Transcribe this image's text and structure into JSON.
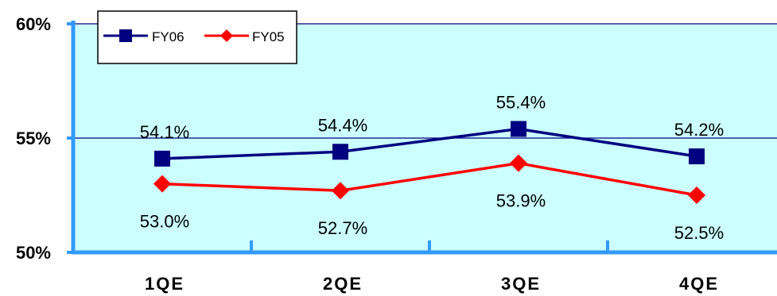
{
  "chart_data": {
    "type": "line",
    "categories": [
      "1QE",
      "2QE",
      "3QE",
      "4QE"
    ],
    "series": [
      {
        "name": "FY06",
        "values": [
          54.1,
          54.4,
          55.4,
          54.2
        ],
        "labels": [
          "54.1%",
          "54.4%",
          "55.4%",
          "54.2%"
        ],
        "color": "#000080",
        "marker": "square",
        "label_position": "above"
      },
      {
        "name": "FY05",
        "values": [
          53.0,
          52.7,
          53.9,
          52.5
        ],
        "labels": [
          "53.0%",
          "52.7%",
          "53.9%",
          "52.5%"
        ],
        "color": "#ff0000",
        "marker": "diamond",
        "label_position": "below"
      }
    ],
    "ylim": [
      50,
      60
    ],
    "y_ticks": [
      {
        "value": 50,
        "label": "50%"
      },
      {
        "value": 55,
        "label": "55%"
      },
      {
        "value": 60,
        "label": "60%"
      }
    ],
    "title": "",
    "xlabel": "",
    "ylabel": "",
    "grid": true,
    "legend_position": "top-left",
    "plot_background": "#ccffff",
    "axis_color": "#3399ff"
  }
}
